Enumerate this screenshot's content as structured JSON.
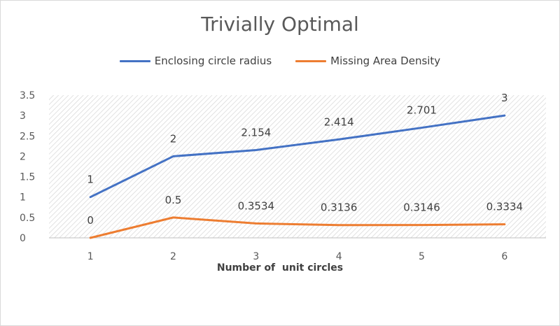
{
  "chart_data": {
    "type": "line",
    "title": "Trivially Optimal",
    "xlabel": "Number of  unit circles",
    "ylabel": "",
    "categories": [
      "1",
      "2",
      "3",
      "4",
      "5",
      "6"
    ],
    "ylim": [
      0,
      3.5
    ],
    "y_ticks": [
      "0",
      "0.5",
      "1",
      "1.5",
      "2",
      "2.5",
      "3",
      "3.5"
    ],
    "grid": false,
    "plot_area_fill": "diagonal-hatch",
    "legend_position": "top",
    "series": [
      {
        "name": "Enclosing circle radius",
        "color": "#4472c4",
        "values": [
          1,
          2,
          2.154,
          2.414,
          2.701,
          3
        ],
        "labels": [
          "1",
          "2",
          "2.154",
          "2.414",
          "2.701",
          "3"
        ]
      },
      {
        "name": "Missing Area Density",
        "color": "#ed7d31",
        "values": [
          0,
          0.5,
          0.3534,
          0.3136,
          0.3146,
          0.3334
        ],
        "labels": [
          "0",
          "0.5",
          "0.3534",
          "0.3136",
          "0.3146",
          "0.3334"
        ]
      }
    ]
  }
}
